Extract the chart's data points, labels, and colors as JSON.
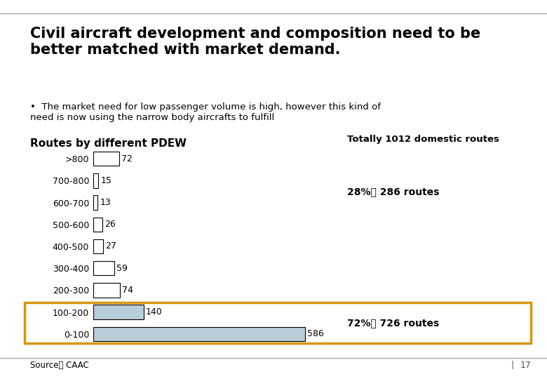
{
  "title": "Civil aircraft development and composition need to be\nbetter matched with market demand.",
  "bullet": "The market need for low passenger volume is high, however this kind of\nneed is now using the narrow body aircrafts to fulfill",
  "chart_title": "Routes by different PDEW",
  "total_label": "Totally 1012 domestic routes",
  "annotation_28": "28%， 286 routes",
  "annotation_72": "72%， 726 routes",
  "source": "Source： CAAC",
  "page_number": "17",
  "categories": [
    ">800",
    "700-800",
    "600-700",
    "500-600",
    "400-500",
    "300-400",
    "200-300",
    "100-200",
    "0-100"
  ],
  "values": [
    72,
    15,
    13,
    26,
    27,
    59,
    74,
    140,
    586
  ],
  "bar_colors": [
    "#ffffff",
    "#ffffff",
    "#ffffff",
    "#ffffff",
    "#ffffff",
    "#ffffff",
    "#ffffff",
    "#b8cdd6",
    "#b8cdd6"
  ],
  "bar_edgecolors": [
    "#000000",
    "#000000",
    "#000000",
    "#000000",
    "#000000",
    "#000000",
    "#000000",
    "#000000",
    "#000000"
  ],
  "highlight_box_color": "#d4960a",
  "background_color": "#ffffff",
  "xlim": [
    0,
    650
  ],
  "ylabel_fontsize": 9,
  "bar_label_fontsize": 9,
  "title_fontsize": 15,
  "chart_title_fontsize": 11
}
